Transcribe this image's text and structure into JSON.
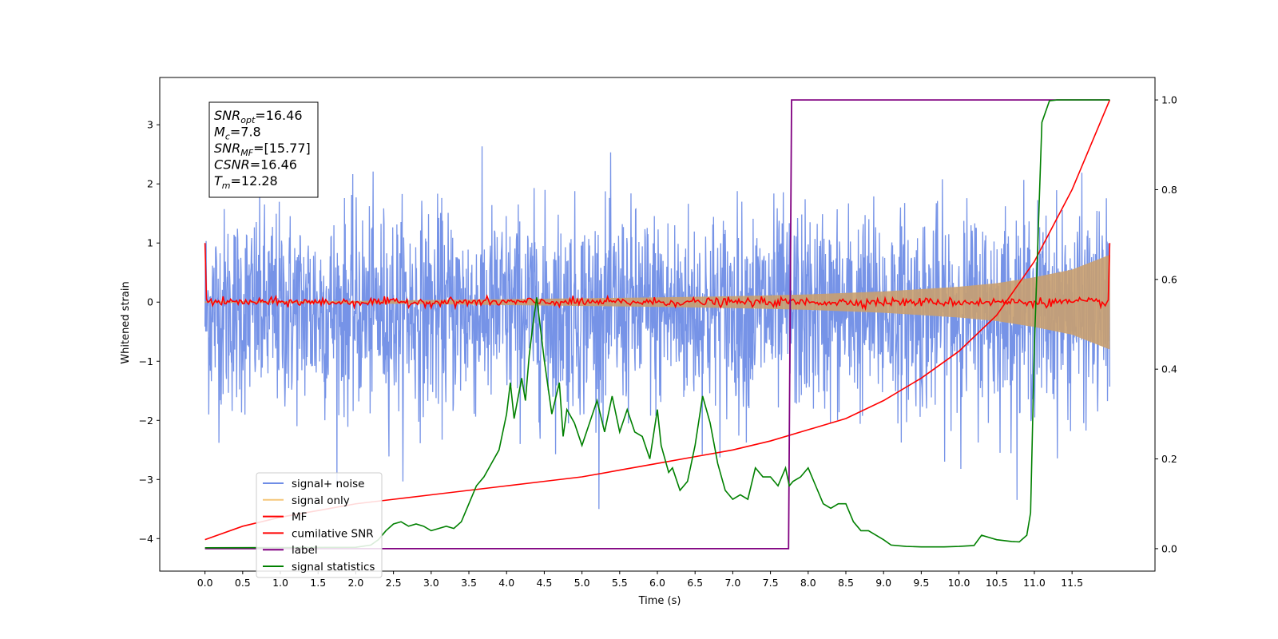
{
  "chart_data": {
    "type": "line",
    "xlabel": "Time (s)",
    "ylabel": "Whitened strain",
    "xlim": [
      -0.6,
      12.6
    ],
    "ylim": [
      -4.55,
      3.8
    ],
    "ylim_right": [
      -0.05,
      1.05
    ],
    "xticks": [
      0.0,
      0.5,
      1.0,
      1.5,
      2.0,
      2.5,
      3.0,
      3.5,
      4.0,
      4.5,
      5.0,
      5.5,
      6.0,
      6.5,
      7.0,
      7.5,
      8.0,
      8.5,
      9.0,
      9.5,
      10.0,
      10.5,
      11.0,
      11.5
    ],
    "xtick_labels": [
      "0.0",
      "0.5",
      "1.0",
      "1.5",
      "2.0",
      "2.5",
      "3.0",
      "3.5",
      "4.0",
      "4.5",
      "5.0",
      "5.5",
      "6.0",
      "6.5",
      "7.0",
      "7.5",
      "8.0",
      "8.5",
      "9.0",
      "9.5",
      "10.0",
      "10.5",
      "11.0",
      "11.5"
    ],
    "yticks": [
      -4,
      -3,
      -2,
      -1,
      0,
      1,
      2,
      3
    ],
    "ytick_labels": [
      "−4",
      "−3",
      "−2",
      "−1",
      "0",
      "1",
      "2",
      "3"
    ],
    "yticks_right": [
      0.0,
      0.2,
      0.4,
      0.6,
      0.8,
      1.0
    ],
    "ytick_labels_right": [
      "0.0",
      "0.2",
      "0.4",
      "0.6",
      "0.8",
      "1.0"
    ],
    "grid": false,
    "legend_position": "bottom-left",
    "info_box": {
      "lines": [
        {
          "main": "SNR",
          "sub": "opt",
          "value": "=16.46"
        },
        {
          "main": "M",
          "sub": "c",
          "value": "=7.8"
        },
        {
          "main": "SNR",
          "sub": "MF",
          "value": "=[15.77]"
        },
        {
          "main": "CSNR",
          "sub": "",
          "value": "=16.46"
        },
        {
          "main": "T",
          "sub": "m",
          "value": "=12.28"
        }
      ]
    },
    "series": [
      {
        "name": "signal+ noise",
        "color": "#6f8de6",
        "axis": "left",
        "kind": "noise_band",
        "x_range": [
          0.0,
          12.0
        ],
        "typical_amplitude": [
          -1.6,
          1.2
        ],
        "peak_range": [
          -3.55,
          3.45
        ]
      },
      {
        "name": "signal only",
        "color": "#f5c77a",
        "axis": "left",
        "kind": "chirp_envelope",
        "x_range": [
          0.0,
          12.0
        ],
        "envelope": {
          "x": [
            0.0,
            2.0,
            4.0,
            6.0,
            7.0,
            8.0,
            9.0,
            10.0,
            10.5,
            11.0,
            11.5,
            12.0
          ],
          "amp": [
            0.01,
            0.02,
            0.05,
            0.08,
            0.1,
            0.13,
            0.18,
            0.26,
            0.32,
            0.42,
            0.55,
            0.8
          ]
        }
      },
      {
        "name": "MF",
        "color": "#ff0000",
        "axis": "left",
        "kind": "noisy_flat",
        "x_range": [
          0.0,
          12.0
        ],
        "start_value": 1.0,
        "end_value": 1.0,
        "jitter": 0.06
      },
      {
        "name": "cumilative SNR",
        "color": "#ff0000",
        "axis": "right",
        "x": [
          0.0,
          0.5,
          1.0,
          1.5,
          2.0,
          2.5,
          3.0,
          3.5,
          4.0,
          4.5,
          5.0,
          5.5,
          6.0,
          6.5,
          7.0,
          7.5,
          8.0,
          8.5,
          9.0,
          9.5,
          10.0,
          10.5,
          11.0,
          11.5,
          12.0
        ],
        "y": [
          0.02,
          0.05,
          0.07,
          0.085,
          0.1,
          0.11,
          0.12,
          0.13,
          0.14,
          0.15,
          0.16,
          0.175,
          0.19,
          0.205,
          0.22,
          0.24,
          0.265,
          0.29,
          0.33,
          0.38,
          0.44,
          0.52,
          0.64,
          0.8,
          1.0
        ]
      },
      {
        "name": "label",
        "color": "#800080",
        "axis": "right",
        "x": [
          0.0,
          7.74,
          7.78,
          12.0
        ],
        "y": [
          0.0,
          0.0,
          1.0,
          1.0
        ]
      },
      {
        "name": "signal statistics",
        "color": "#008000",
        "axis": "right",
        "x": [
          0.0,
          2.0,
          2.2,
          2.3,
          2.4,
          2.5,
          2.6,
          2.7,
          2.8,
          2.9,
          3.0,
          3.1,
          3.2,
          3.3,
          3.4,
          3.5,
          3.6,
          3.7,
          3.8,
          3.9,
          4.0,
          4.05,
          4.1,
          4.2,
          4.25,
          4.3,
          4.35,
          4.4,
          4.5,
          4.6,
          4.7,
          4.75,
          4.8,
          4.9,
          5.0,
          5.1,
          5.2,
          5.3,
          5.4,
          5.5,
          5.6,
          5.7,
          5.8,
          5.9,
          6.0,
          6.05,
          6.1,
          6.15,
          6.2,
          6.3,
          6.4,
          6.5,
          6.6,
          6.7,
          6.8,
          6.9,
          7.0,
          7.1,
          7.2,
          7.3,
          7.4,
          7.5,
          7.6,
          7.7,
          7.75,
          7.8,
          7.9,
          8.0,
          8.1,
          8.2,
          8.3,
          8.4,
          8.5,
          8.6,
          8.7,
          8.8,
          8.9,
          9.0,
          9.1,
          9.3,
          9.5,
          9.8,
          10.0,
          10.2,
          10.3,
          10.4,
          10.5,
          10.6,
          10.7,
          10.8,
          10.9,
          10.95,
          11.0,
          11.1,
          11.2,
          11.3,
          11.5,
          12.0
        ],
        "y": [
          0.002,
          0.003,
          0.008,
          0.02,
          0.04,
          0.055,
          0.06,
          0.05,
          0.055,
          0.05,
          0.04,
          0.045,
          0.05,
          0.045,
          0.06,
          0.1,
          0.14,
          0.16,
          0.19,
          0.22,
          0.3,
          0.37,
          0.29,
          0.38,
          0.33,
          0.43,
          0.5,
          0.56,
          0.42,
          0.3,
          0.37,
          0.25,
          0.31,
          0.28,
          0.23,
          0.28,
          0.33,
          0.26,
          0.34,
          0.26,
          0.31,
          0.26,
          0.25,
          0.2,
          0.31,
          0.23,
          0.2,
          0.17,
          0.18,
          0.13,
          0.15,
          0.23,
          0.34,
          0.28,
          0.19,
          0.13,
          0.11,
          0.12,
          0.11,
          0.18,
          0.16,
          0.16,
          0.14,
          0.18,
          0.14,
          0.15,
          0.16,
          0.18,
          0.14,
          0.1,
          0.09,
          0.1,
          0.1,
          0.06,
          0.04,
          0.04,
          0.03,
          0.02,
          0.008,
          0.005,
          0.004,
          0.004,
          0.005,
          0.007,
          0.03,
          0.025,
          0.02,
          0.018,
          0.016,
          0.015,
          0.03,
          0.08,
          0.45,
          0.95,
          0.998,
          1.0,
          1.0,
          1.0
        ]
      }
    ]
  }
}
